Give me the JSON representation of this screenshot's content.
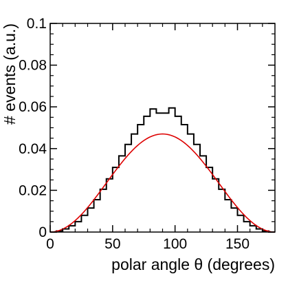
{
  "chart_data": {
    "type": "line",
    "xlabel": "polar angle θ (degrees)",
    "ylabel": "# events (a.u.)",
    "xlim": [
      0,
      180
    ],
    "ylim": [
      0,
      0.1
    ],
    "x_ticks": [
      "0",
      "50",
      "100",
      "150"
    ],
    "x_tick_values": [
      0,
      50,
      100,
      150
    ],
    "y_ticks": [
      "0",
      "0.02",
      "0.04",
      "0.06",
      "0.08",
      "0.1"
    ],
    "y_tick_values": [
      0,
      0.02,
      0.04,
      0.06,
      0.08,
      0.1
    ],
    "grid": false,
    "series": [
      {
        "style": "histogram",
        "color": "#000000",
        "bin_width": 5,
        "bin_edges_start": 0,
        "values": [
          0,
          0.0005,
          0.0015,
          0.003,
          0.005,
          0.008,
          0.0115,
          0.0155,
          0.0205,
          0.0255,
          0.031,
          0.0365,
          0.042,
          0.047,
          0.0515,
          0.0555,
          0.059,
          0.057,
          0.057,
          0.0595,
          0.0555,
          0.0515,
          0.047,
          0.042,
          0.0365,
          0.031,
          0.0255,
          0.0205,
          0.0155,
          0.0115,
          0.008,
          0.005,
          0.003,
          0.0015,
          0.0005,
          0
        ]
      },
      {
        "style": "curve",
        "color": "#dd0000",
        "function": "0.047*sin^2(θ)"
      }
    ]
  }
}
